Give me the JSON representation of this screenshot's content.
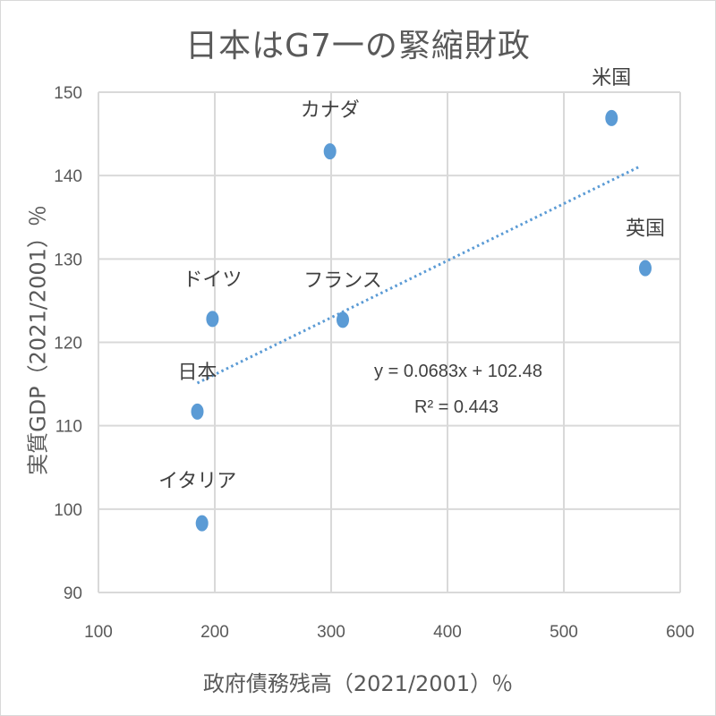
{
  "chart_data": {
    "type": "scatter",
    "title": "日本はG7一の緊縮財政",
    "xlabel": "政府債務残高（2021/2001）％",
    "ylabel": "実質GDP（2021/2001）％",
    "xlim": [
      100,
      600
    ],
    "ylim": [
      90,
      150
    ],
    "x_ticks": [
      100,
      200,
      300,
      400,
      500,
      600
    ],
    "y_ticks": [
      90,
      100,
      110,
      120,
      130,
      140,
      150
    ],
    "grid": true,
    "legend": "none",
    "marker_color": "#5B9BD5",
    "points": [
      {
        "label": "日本",
        "x": 185,
        "y": 111.7
      },
      {
        "label": "イタリア",
        "x": 189,
        "y": 98.3
      },
      {
        "label": "ドイツ",
        "x": 198,
        "y": 122.8
      },
      {
        "label": "カナダ",
        "x": 299,
        "y": 142.9
      },
      {
        "label": "フランス",
        "x": 310,
        "y": 122.7
      },
      {
        "label": "米国",
        "x": 541,
        "y": 146.9
      },
      {
        "label": "英国",
        "x": 570,
        "y": 128.9
      }
    ],
    "trendline": {
      "type": "linear",
      "style": "dotted",
      "slope": 0.0683,
      "intercept": 102.48,
      "x_range": [
        185,
        566
      ],
      "equation_label": "y = 0.0683x + 102.48",
      "r2_label": "R² = 0.443"
    }
  }
}
